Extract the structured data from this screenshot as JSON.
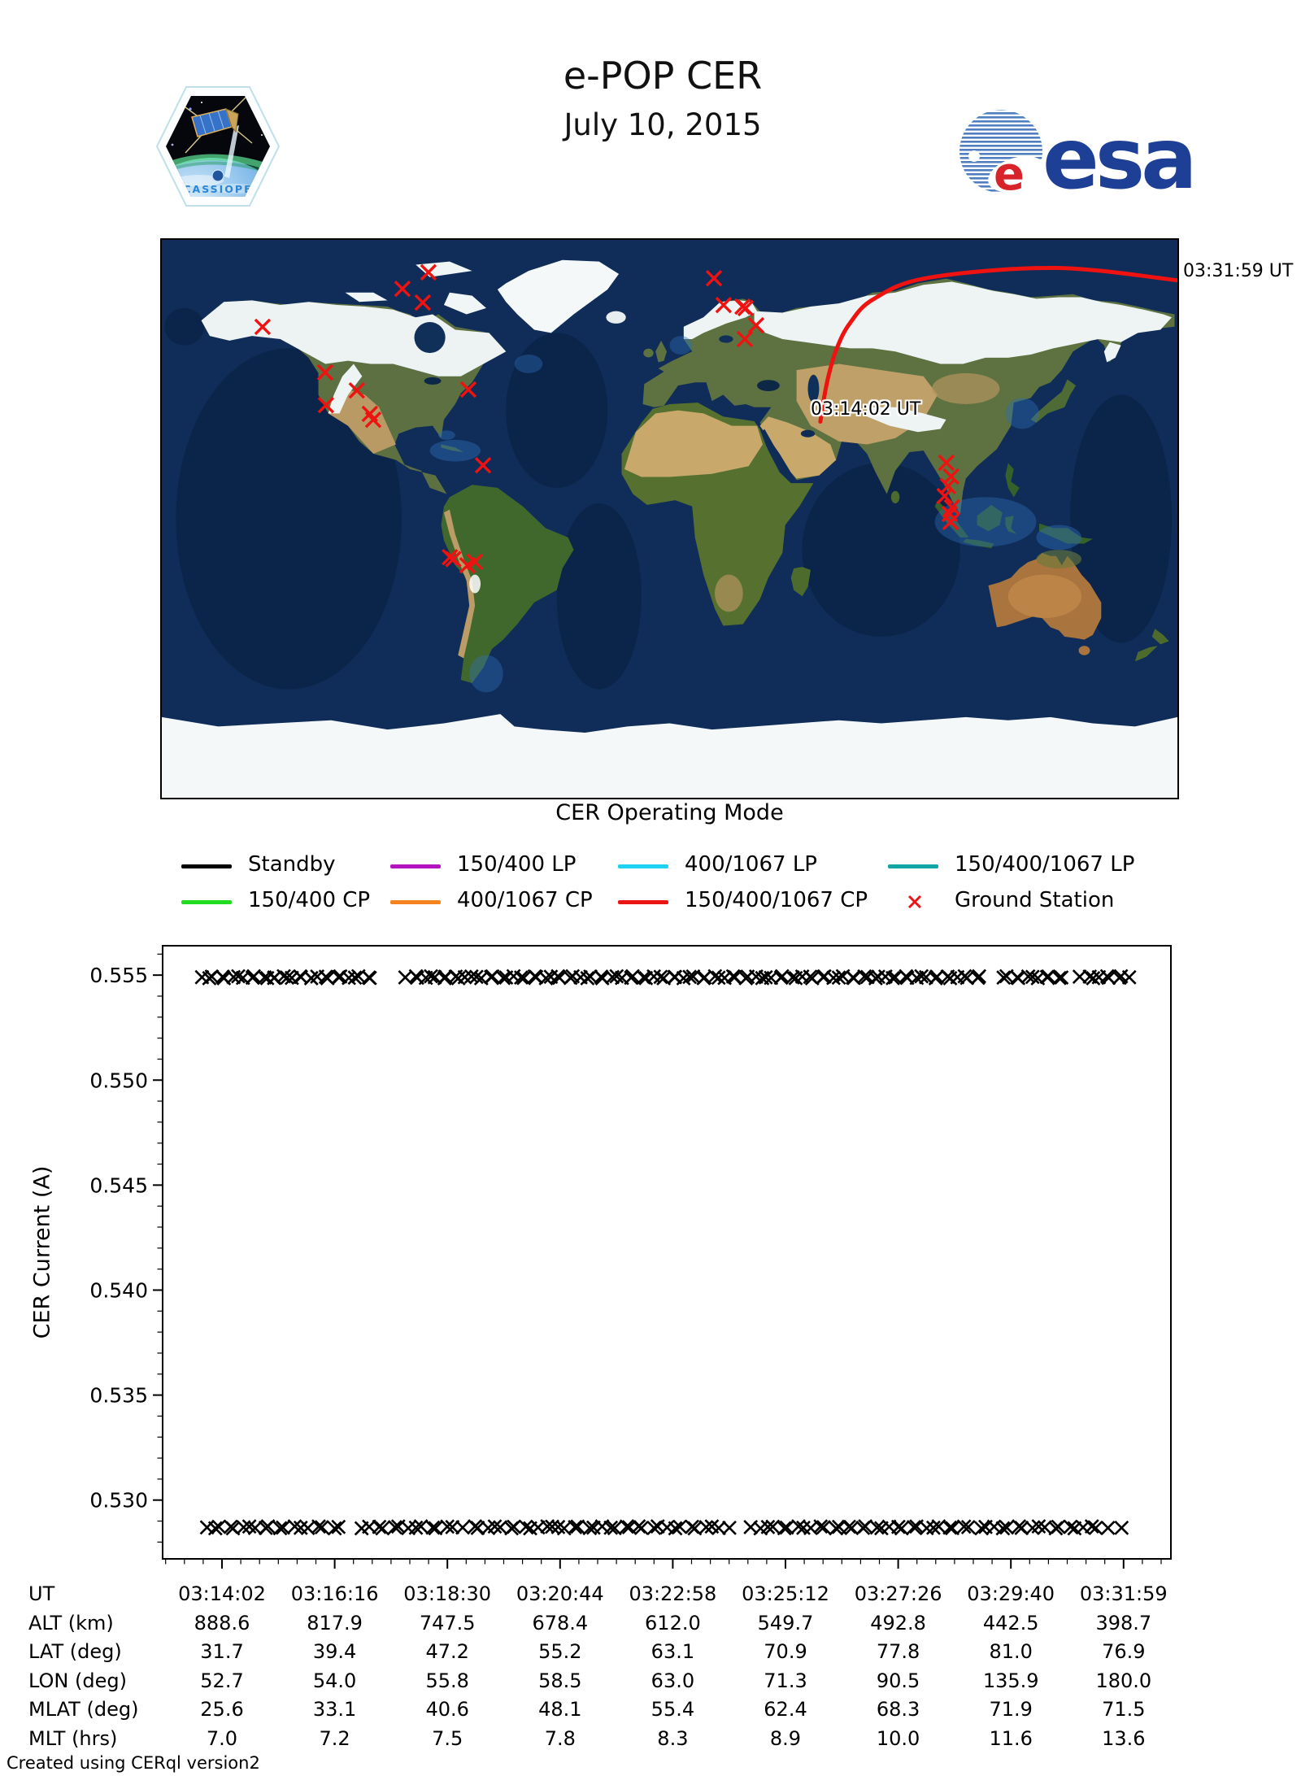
{
  "header": {
    "title": "e-POP CER",
    "subtitle": "July 10, 2015",
    "cassiope_patch_text": "CASSIOPE",
    "esa_logo_text": "esa"
  },
  "map": {
    "start_time_label": "03:14:02 UT",
    "end_time_label": "03:31:59 UT",
    "track_color": "#ee1210",
    "ground_station_color": "#ee1210",
    "track_points_lonlat": [
      [
        52.7,
        31.7
      ],
      [
        54.0,
        39.4
      ],
      [
        55.8,
        47.2
      ],
      [
        58.5,
        55.2
      ],
      [
        63.0,
        63.1
      ],
      [
        71.3,
        70.9
      ],
      [
        90.5,
        77.8
      ],
      [
        135.9,
        81.0
      ],
      [
        180.0,
        76.9
      ]
    ],
    "ground_stations_lonlat": [
      [
        -85.8,
        79.6
      ],
      [
        -95.0,
        74.3
      ],
      [
        -87.8,
        69.9
      ],
      [
        -144.4,
        62.1
      ],
      [
        -122.3,
        47.5
      ],
      [
        -111.1,
        41.7
      ],
      [
        -122.0,
        37.0
      ],
      [
        -106.5,
        34.2
      ],
      [
        -105.3,
        32.3
      ],
      [
        -71.7,
        42.0
      ],
      [
        -66.5,
        17.7
      ],
      [
        15.1,
        77.7
      ],
      [
        18.5,
        69.1
      ],
      [
        25.2,
        68.6
      ],
      [
        26.3,
        68.1
      ],
      [
        30.0,
        62.6
      ],
      [
        26.0,
        58.2
      ],
      [
        -78.2,
        -11.8
      ],
      [
        -77.0,
        -12.4
      ],
      [
        -72.0,
        -14.4
      ],
      [
        -69.4,
        -13.3
      ],
      [
        97.2,
        18.5
      ],
      [
        98.9,
        14.1
      ],
      [
        97.8,
        11.0
      ],
      [
        96.6,
        7.8
      ],
      [
        99.2,
        4.2
      ],
      [
        98.4,
        2.1
      ],
      [
        98.7,
        -0.5
      ]
    ]
  },
  "legend": {
    "title": "CER Operating Mode",
    "items": [
      {
        "label": "Standby",
        "color": "#000000",
        "marker": "line"
      },
      {
        "label": "150/400 LP",
        "color": "#b414bf",
        "marker": "line"
      },
      {
        "label": "400/1067 LP",
        "color": "#1fd2f4",
        "marker": "line"
      },
      {
        "label": "150/400/1067 LP",
        "color": "#11a5a5",
        "marker": "line"
      },
      {
        "label": "150/400 CP",
        "color": "#21dd21",
        "marker": "line"
      },
      {
        "label": "400/1067 CP",
        "color": "#f5831f",
        "marker": "line"
      },
      {
        "label": "150/400/1067 CP",
        "color": "#ec1515",
        "marker": "line"
      },
      {
        "label": "Ground Station",
        "color": "#ec1515",
        "marker": "x"
      }
    ]
  },
  "chart_data": {
    "type": "scatter",
    "ylabel": "CER Current (A)",
    "marker": "x",
    "marker_color": "#000000",
    "ylim": [
      0.5272,
      0.5564
    ],
    "yticks": [
      0.53,
      0.535,
      0.54,
      0.545,
      0.55,
      0.555
    ],
    "ytick_labels": [
      "0.530",
      "0.535",
      "0.540",
      "0.545",
      "0.550",
      "0.555"
    ],
    "minor_ytick_step": 0.001,
    "xtick_labels": [
      "03:14:02",
      "03:16:16",
      "03:18:30",
      "03:20:44",
      "03:22:58",
      "03:25:12",
      "03:27:26",
      "03:29:40",
      "03:31:59"
    ],
    "grid": false,
    "series": [
      {
        "name": "CER current upper level",
        "current_A": 0.5549,
        "segments": [
          [
            0.039,
            0.105,
            12
          ],
          [
            0.108,
            0.145,
            8
          ],
          [
            0.148,
            0.208,
            11
          ],
          [
            0.243,
            0.3,
            11
          ],
          [
            0.305,
            0.385,
            14
          ],
          [
            0.39,
            0.505,
            20
          ],
          [
            0.51,
            0.6,
            16
          ],
          [
            0.605,
            0.7,
            17
          ],
          [
            0.705,
            0.812,
            19
          ],
          [
            0.833,
            0.893,
            11
          ],
          [
            0.912,
            0.958,
            9
          ]
        ]
      },
      {
        "name": "CER current lower level",
        "current_A": 0.5287,
        "segments": [
          [
            0.044,
            0.107,
            10
          ],
          [
            0.114,
            0.176,
            9
          ],
          [
            0.198,
            0.288,
            13
          ],
          [
            0.3,
            0.38,
            12
          ],
          [
            0.385,
            0.465,
            12
          ],
          [
            0.47,
            0.56,
            13
          ],
          [
            0.585,
            0.68,
            14
          ],
          [
            0.685,
            0.8,
            17
          ],
          [
            0.81,
            0.935,
            18
          ],
          [
            0.95,
            0.95,
            1
          ]
        ]
      }
    ]
  },
  "table": {
    "rows": [
      {
        "label": "UT",
        "values": [
          "03:14:02",
          "03:16:16",
          "03:18:30",
          "03:20:44",
          "03:22:58",
          "03:25:12",
          "03:27:26",
          "03:29:40",
          "03:31:59"
        ]
      },
      {
        "label": "ALT (km)",
        "values": [
          "888.6",
          "817.9",
          "747.5",
          "678.4",
          "612.0",
          "549.7",
          "492.8",
          "442.5",
          "398.7"
        ]
      },
      {
        "label": "LAT (deg)",
        "values": [
          "31.7",
          "39.4",
          "47.2",
          "55.2",
          "63.1",
          "70.9",
          "77.8",
          "81.0",
          "76.9"
        ]
      },
      {
        "label": "LON (deg)",
        "values": [
          "52.7",
          "54.0",
          "55.8",
          "58.5",
          "63.0",
          "71.3",
          "90.5",
          "135.9",
          "180.0"
        ]
      },
      {
        "label": "MLAT (deg)",
        "values": [
          "25.6",
          "33.1",
          "40.6",
          "48.1",
          "55.4",
          "62.4",
          "68.3",
          "71.9",
          "71.5"
        ]
      },
      {
        "label": "MLT (hrs)",
        "values": [
          "7.0",
          "7.2",
          "7.5",
          "7.8",
          "8.3",
          "8.9",
          "10.0",
          "11.6",
          "13.6"
        ]
      }
    ]
  },
  "footer": {
    "credit": "Created using CERql version2"
  }
}
